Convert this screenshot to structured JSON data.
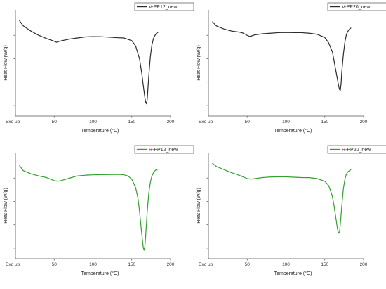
{
  "chart_data": [
    {
      "type": "line",
      "xlabel": "Temperature (°C)",
      "ylabel": "Heat Flow (W/g)",
      "corner_label": "Exo up",
      "xlim": [
        0,
        200
      ],
      "ylim": [
        -1.0,
        0.0
      ],
      "xticks": [
        50,
        100,
        150,
        200
      ],
      "color": "#2b2b2b",
      "legend": {
        "label": "V-PP12_new",
        "position": "top-right"
      },
      "series": [
        {
          "name": "V-PP12_new",
          "x": [
            5,
            10,
            20,
            30,
            40,
            48,
            53,
            55,
            60,
            70,
            80,
            90,
            100,
            110,
            120,
            130,
            140,
            150,
            155,
            160,
            163,
            165,
            167,
            168,
            169,
            170,
            172,
            174,
            176,
            178,
            180,
            182,
            184
          ],
          "y": [
            -0.1,
            -0.15,
            -0.2,
            -0.24,
            -0.27,
            -0.29,
            -0.305,
            -0.3,
            -0.29,
            -0.275,
            -0.265,
            -0.255,
            -0.252,
            -0.253,
            -0.257,
            -0.262,
            -0.265,
            -0.29,
            -0.34,
            -0.46,
            -0.6,
            -0.72,
            -0.83,
            -0.87,
            -0.885,
            -0.84,
            -0.62,
            -0.44,
            -0.33,
            -0.27,
            -0.24,
            -0.22,
            -0.21
          ]
        }
      ]
    },
    {
      "type": "line",
      "xlabel": "Temperature (°C)",
      "ylabel": "Heat Flow (W/g)",
      "corner_label": "Exo up",
      "xlim": [
        0,
        200
      ],
      "ylim": [
        -1.0,
        0.0
      ],
      "xticks": [
        50,
        100,
        150,
        200
      ],
      "color": "#2b2b2b",
      "legend": {
        "label": "V-PP20_new",
        "position": "top-right"
      },
      "series": [
        {
          "name": "V-PP20_new",
          "x": [
            5,
            10,
            20,
            30,
            40,
            45,
            50,
            53,
            56,
            60,
            70,
            80,
            90,
            100,
            110,
            120,
            130,
            140,
            150,
            155,
            160,
            163,
            165,
            167,
            168,
            169,
            170,
            171,
            172,
            174,
            176,
            178,
            180,
            182,
            184
          ],
          "y": [
            -0.11,
            -0.15,
            -0.18,
            -0.2,
            -0.21,
            -0.22,
            -0.24,
            -0.25,
            -0.245,
            -0.235,
            -0.225,
            -0.22,
            -0.215,
            -0.213,
            -0.215,
            -0.215,
            -0.22,
            -0.23,
            -0.26,
            -0.31,
            -0.4,
            -0.52,
            -0.6,
            -0.68,
            -0.72,
            -0.75,
            -0.76,
            -0.7,
            -0.58,
            -0.42,
            -0.3,
            -0.23,
            -0.2,
            -0.18,
            -0.17
          ]
        }
      ]
    },
    {
      "type": "line",
      "xlabel": "Temperature (°C)",
      "ylabel": "Heat Flow (W/g)",
      "corner_label": "Exo up",
      "xlim": [
        0,
        200
      ],
      "ylim": [
        -1.0,
        0.0
      ],
      "xticks": [
        50,
        100,
        150,
        200
      ],
      "color": "#33a02c",
      "legend": {
        "label": "R-PP12_new",
        "position": "top-right"
      },
      "series": [
        {
          "name": "R-PP12_new",
          "x": [
            5,
            10,
            20,
            30,
            40,
            45,
            50,
            55,
            60,
            70,
            80,
            90,
            100,
            110,
            120,
            130,
            135,
            140,
            145,
            150,
            155,
            158,
            160,
            162,
            164,
            165,
            166,
            167,
            168,
            170,
            172,
            174,
            176,
            178,
            180,
            182,
            184
          ],
          "y": [
            -0.12,
            -0.17,
            -0.2,
            -0.22,
            -0.235,
            -0.25,
            -0.265,
            -0.27,
            -0.262,
            -0.24,
            -0.22,
            -0.213,
            -0.21,
            -0.208,
            -0.207,
            -0.206,
            -0.206,
            -0.21,
            -0.22,
            -0.25,
            -0.33,
            -0.43,
            -0.55,
            -0.7,
            -0.84,
            -0.9,
            -0.92,
            -0.88,
            -0.78,
            -0.55,
            -0.38,
            -0.28,
            -0.22,
            -0.19,
            -0.17,
            -0.16,
            -0.155
          ]
        }
      ]
    },
    {
      "type": "line",
      "xlabel": "Temperature (°C)",
      "ylabel": "Heat Flow (W/g)",
      "corner_label": "Exo up",
      "xlim": [
        0,
        200
      ],
      "ylim": [
        -1.0,
        0.0
      ],
      "xticks": [
        50,
        100,
        150,
        200
      ],
      "color": "#33a02c",
      "legend": {
        "label": "R-PP20_new",
        "position": "top-right"
      },
      "series": [
        {
          "name": "R-PP20_new",
          "x": [
            5,
            10,
            20,
            30,
            40,
            45,
            50,
            55,
            60,
            70,
            80,
            90,
            100,
            110,
            120,
            130,
            140,
            150,
            155,
            158,
            160,
            162,
            164,
            166,
            167,
            168,
            169,
            170,
            172,
            174,
            176,
            178,
            180,
            182,
            184
          ],
          "y": [
            -0.1,
            -0.13,
            -0.16,
            -0.19,
            -0.215,
            -0.23,
            -0.245,
            -0.25,
            -0.245,
            -0.235,
            -0.23,
            -0.228,
            -0.228,
            -0.232,
            -0.235,
            -0.236,
            -0.245,
            -0.27,
            -0.31,
            -0.37,
            -0.42,
            -0.5,
            -0.6,
            -0.7,
            -0.74,
            -0.76,
            -0.75,
            -0.68,
            -0.5,
            -0.34,
            -0.25,
            -0.2,
            -0.18,
            -0.17,
            -0.16
          ]
        }
      ]
    }
  ]
}
